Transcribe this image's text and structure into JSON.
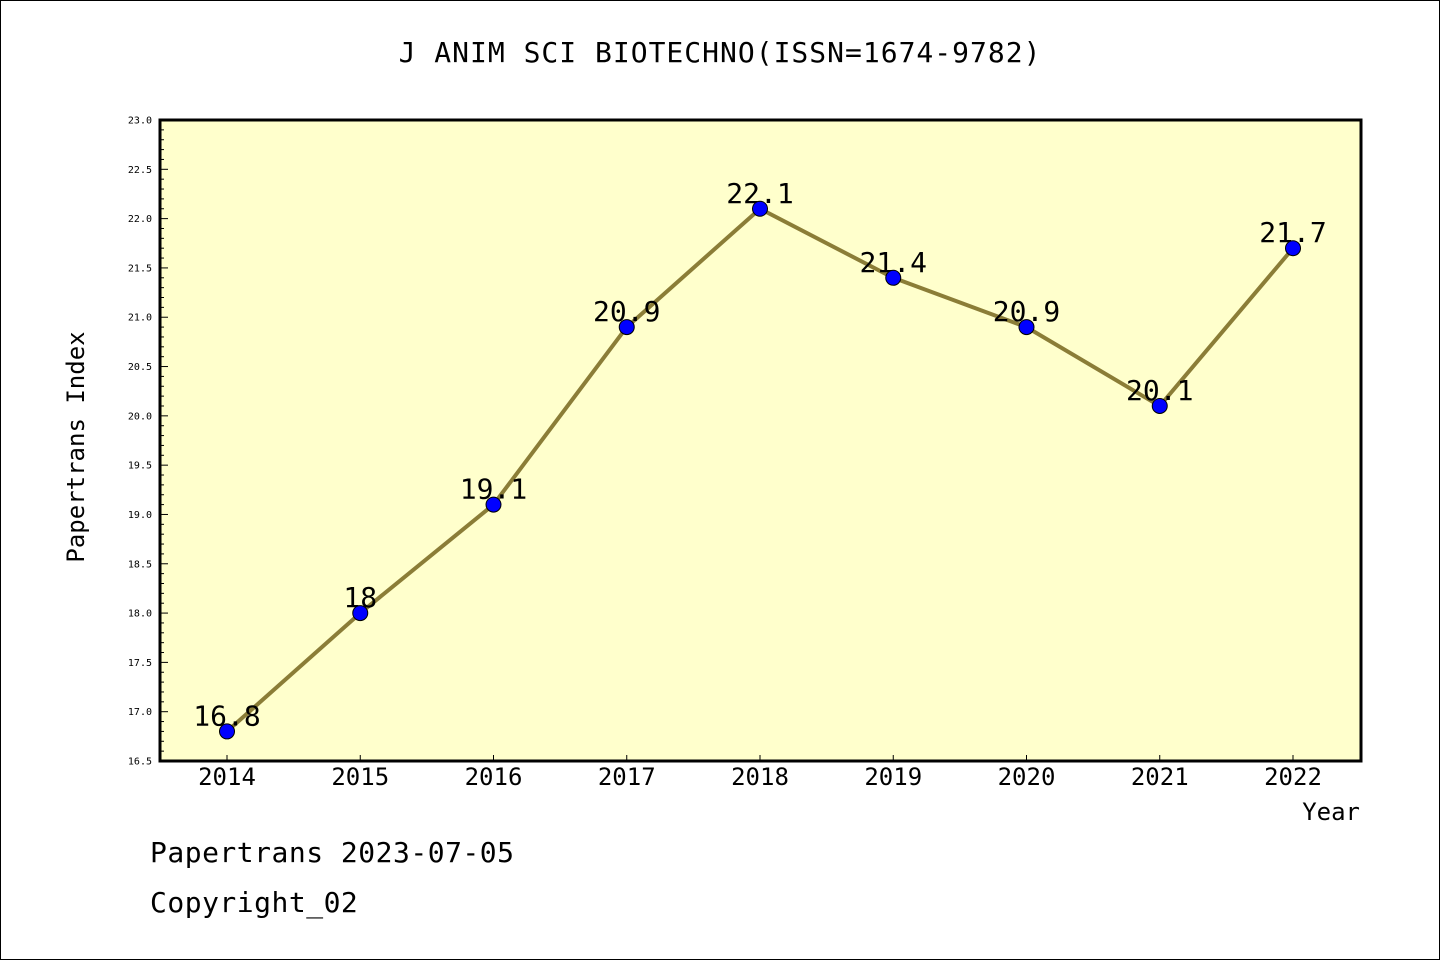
{
  "title": "J ANIM SCI BIOTECHNO(ISSN=1674-9782)",
  "footer": {
    "date_line": "Papertrans 2023-07-05",
    "copyright_line": "Copyright_02"
  },
  "colors": {
    "plot_background": "#ffffcc",
    "line": "#8b7d37",
    "marker": "#0000ff"
  },
  "chart_data": {
    "type": "line",
    "title": "J ANIM SCI BIOTECHNO(ISSN=1674-9782)",
    "xlabel": "Year",
    "ylabel": "Papertrans Index",
    "categories": [
      "2014",
      "2015",
      "2016",
      "2017",
      "2018",
      "2019",
      "2020",
      "2021",
      "2022"
    ],
    "series": [
      {
        "values": [
          16.8,
          18,
          19.1,
          20.9,
          22.1,
          21.4,
          20.9,
          20.1,
          21.7
        ],
        "labels": [
          "16.8",
          "18",
          "19.1",
          "20.9",
          "22.1",
          "21.4",
          "20.9",
          "20.1",
          "21.7"
        ]
      }
    ],
    "ylim": [
      16.5,
      23.0
    ],
    "yticks": [
      "16.5",
      "17.0",
      "17.5",
      "18.0",
      "18.5",
      "19.0",
      "19.5",
      "20.0",
      "20.5",
      "21.0",
      "21.5",
      "22.0",
      "22.5",
      "23.0"
    ],
    "grid": false,
    "legend": "none"
  }
}
